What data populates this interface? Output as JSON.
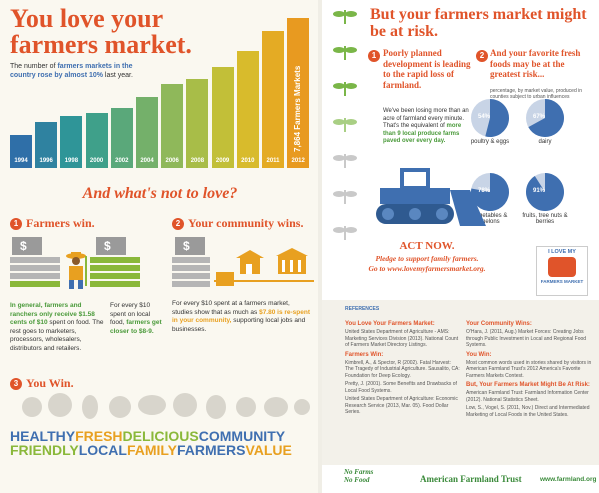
{
  "left": {
    "title": "You love your farmers market.",
    "subtitle_pre": "The number of ",
    "subtitle_hl1": "farmers markets in the country rose by almost 10%",
    "subtitle_post": " last year.",
    "big_bar_label": "7,864 Farmers Markets",
    "what_heading": "And what's not to love?",
    "sec1": {
      "num": "1",
      "title": "Farmers win.",
      "text_a_hl": "In general, farmers and ranchers only receive $1.58 cents of $10",
      "text_a": " spent on food. The rest goes to marketers, processors, wholesalers, distributors and retailers.",
      "text_b_pre": "For every $10 spent on local food, ",
      "text_b_hl": "farmers get closer to $8-9."
    },
    "sec2": {
      "num": "2",
      "title": "Your community wins.",
      "text_pre": "For every $10 spent at a farmers market, studies show that as much as ",
      "text_hl": "$7.80 is re-spent in your community,",
      "text_post": " supporting local jobs and businesses."
    },
    "sec3": {
      "num": "3",
      "title": "You Win."
    },
    "footer_line1": [
      "HEALTHY",
      "FRESH",
      "DELICIOUS",
      "COMMUNITY"
    ],
    "footer_line2": [
      "FRIENDLY",
      "LOCAL",
      "FAMILY",
      "FARMERS",
      "VALUE"
    ],
    "footer_colors1": [
      "#3f6fb0",
      "#e8a020",
      "#8ab83a",
      "#3f6fb0"
    ],
    "footer_colors2": [
      "#8ab83a",
      "#3f6fb0",
      "#e8a020",
      "#3f6fb0",
      "#e8a020"
    ],
    "dollar": "$"
  },
  "chart_data": {
    "type": "bar",
    "categories": [
      "1994",
      "1996",
      "1998",
      "2000",
      "2002",
      "2004",
      "2006",
      "2008",
      "2009",
      "2010",
      "2011",
      "2012"
    ],
    "values": [
      1755,
      2410,
      2746,
      2863,
      3137,
      3706,
      4385,
      4685,
      5274,
      6132,
      7175,
      7864
    ],
    "colors": [
      "#2f6fa8",
      "#2f82a0",
      "#2f9598",
      "#3fa08a",
      "#5aa87a",
      "#74b06a",
      "#8fb85a",
      "#a8bd48",
      "#c2bf38",
      "#d8bb2c",
      "#e4ab24",
      "#e89a20"
    ],
    "ylim": [
      0,
      7864
    ]
  },
  "right": {
    "title": "But your farmers market might be at risk.",
    "sec1": {
      "num": "1",
      "title": "Poorly planned development is leading to the rapid loss of farmland.",
      "text_pre": "We've been losing more than an acre of farmland every minute. That's the equivalent of ",
      "text_hl": "more than 9 local produce farms paved over every day."
    },
    "sec2": {
      "num": "2",
      "title": "And your favorite fresh foods may be at the greatest risk...",
      "text": "percentage, by market value, produced in counties subject to urban influences"
    },
    "pies": [
      {
        "value": 54,
        "label": "54%",
        "caption": "poultry & eggs"
      },
      {
        "value": 67,
        "label": "67%",
        "caption": "dairy"
      },
      {
        "value": 78,
        "label": "78%",
        "caption": "vegetables & melons"
      },
      {
        "value": 91,
        "label": "91%",
        "caption": "fruits, tree nuts & berries"
      }
    ],
    "act_now": "ACT NOW.",
    "pledge": "Pledge to support family farmers.",
    "go_to": "Go to www.lovemyfarmersmarket.org.",
    "badge_top": "I LOVE MY",
    "badge_bottom": "FARMERS MARKET",
    "references_heading": "REFERENCES",
    "refs_left": [
      {
        "h": "You Love Your Farmers Market:",
        "t": "United States Department of Agriculture - AMS: Marketing Services Division (2013). National Count of Farmers Market Directory Listings."
      },
      {
        "h": "Farmers Win:",
        "t": "Kimbrell, A., & Spector, R (2002). Fatal Harvest: The Tragedy of Industrial Agriculture. Sausalito, CA: Foundation for Deep Ecology."
      },
      {
        "h": "",
        "t": "Pretty, J. (2001). Some Benefits and Drawbacks of Local Food Systems."
      },
      {
        "h": "",
        "t": "United States Department of Agriculture: Economic Research Service (2013, Mar. 05). Food Dollar Series."
      }
    ],
    "refs_right": [
      {
        "h": "Your Community Wins:",
        "t": "O'Hara, J. (2011, Aug.) Market Forces: Creating Jobs through Public Investment in Local and Regional Food Systems."
      },
      {
        "h": "You Win:",
        "t": "Most common words used in stories shared by visitors in American Farmland Trust's 2012 America's Favorite Farmers Markets Contest."
      },
      {
        "h": "But, Your Farmers Market Might Be At Risk:",
        "t": "American Farmland Trust: Farmland Information Center (2012). National Statistics Sheet."
      },
      {
        "h": "",
        "t": "Low, S., Vogel, S. (2011, Nov.) Direct and Intermediated Marketing of Local Foods in the United States."
      }
    ],
    "no_farms": "No Farms",
    "no_food": "No Food",
    "aft": "American Farmland Trust",
    "website": "www.farmland.org"
  },
  "colors": {
    "orange": "#e0542a",
    "green": "#4a9a3a",
    "blue": "#3f6fb0",
    "yellow": "#e8a020"
  }
}
